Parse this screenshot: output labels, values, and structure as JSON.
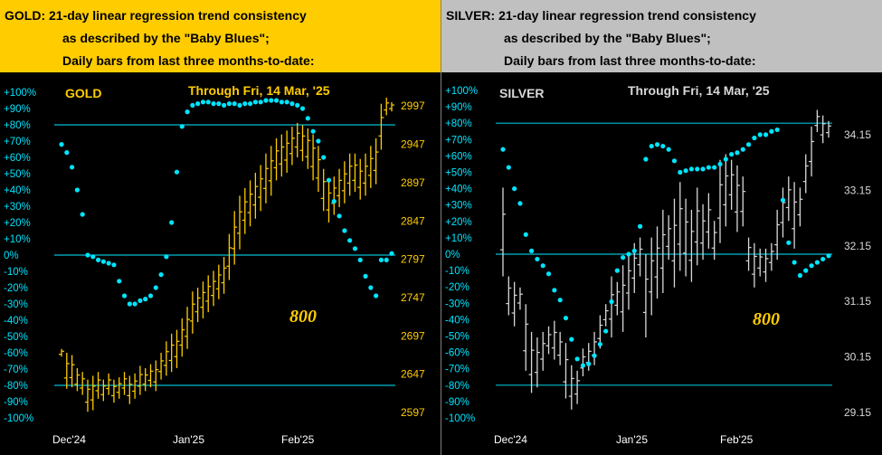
{
  "panels": [
    {
      "id": "gold",
      "header": {
        "line1": "GOLD:  21-day linear regression trend consistency",
        "line2": "as described by the \"Baby Blues\";",
        "line3": "Daily bars from last three months-to-date:"
      }
    },
    {
      "id": "silver",
      "header": {
        "line1": "SILVER:  21-day linear regression trend consistency",
        "line2": "as described by the \"Baby Blues\";",
        "line3": "Daily bars from last three months-to-date:"
      }
    }
  ],
  "chart_data": [
    {
      "type": "bar",
      "subtype": "daily-high-low-bars-with-dot-overlay",
      "label": "GOLD",
      "date_note": "Through Fri, 14 Mar, '25",
      "watermark": "800",
      "bar_color": "#ffcc00",
      "dot_color": "#00e5ff",
      "line_color": "#00bcd4",
      "left_axis": {
        "ticks": [
          "+100%",
          "+90%",
          "+80%",
          "+70%",
          "+60%",
          "+50%",
          "+40%",
          "+30%",
          "+20%",
          "+10%",
          "0%",
          "-10%",
          "-20%",
          "-30%",
          "-40%",
          "-50%",
          "-60%",
          "-70%",
          "-80%",
          "-90%",
          "-100%"
        ],
        "range": [
          -100,
          100
        ]
      },
      "right_axis": {
        "ticks": [
          "2997",
          "2947",
          "2897",
          "2847",
          "2797",
          "2747",
          "2697",
          "2647",
          "2597"
        ],
        "range": [
          2590,
          3015
        ]
      },
      "x_labels": [
        "Dec'24",
        "Jan'25",
        "Feb'25"
      ],
      "reference_lines_pct": [
        80,
        0,
        -80
      ],
      "bars": [
        [
          2670,
          2680
        ],
        [
          2628,
          2675
        ],
        [
          2630,
          2672
        ],
        [
          2625,
          2655
        ],
        [
          2620,
          2650
        ],
        [
          2598,
          2640
        ],
        [
          2600,
          2645
        ],
        [
          2615,
          2650
        ],
        [
          2612,
          2640
        ],
        [
          2620,
          2648
        ],
        [
          2610,
          2640
        ],
        [
          2615,
          2643
        ],
        [
          2620,
          2650
        ],
        [
          2608,
          2645
        ],
        [
          2615,
          2648
        ],
        [
          2620,
          2658
        ],
        [
          2625,
          2655
        ],
        [
          2630,
          2660
        ],
        [
          2625,
          2665
        ],
        [
          2640,
          2675
        ],
        [
          2645,
          2690
        ],
        [
          2650,
          2700
        ],
        [
          2655,
          2705
        ],
        [
          2670,
          2720
        ],
        [
          2680,
          2735
        ],
        [
          2700,
          2755
        ],
        [
          2715,
          2760
        ],
        [
          2720,
          2768
        ],
        [
          2728,
          2776
        ],
        [
          2736,
          2782
        ],
        [
          2745,
          2790
        ],
        [
          2752,
          2800
        ],
        [
          2770,
          2830
        ],
        [
          2790,
          2860
        ],
        [
          2810,
          2880
        ],
        [
          2830,
          2890
        ],
        [
          2840,
          2900
        ],
        [
          2850,
          2910
        ],
        [
          2860,
          2920
        ],
        [
          2870,
          2935
        ],
        [
          2880,
          2945
        ],
        [
          2900,
          2955
        ],
        [
          2905,
          2960
        ],
        [
          2910,
          2965
        ],
        [
          2920,
          2970
        ],
        [
          2930,
          2975
        ],
        [
          2925,
          2972
        ],
        [
          2915,
          2968
        ],
        [
          2900,
          2960
        ],
        [
          2885,
          2945
        ],
        [
          2860,
          2915
        ],
        [
          2845,
          2900
        ],
        [
          2855,
          2905
        ],
        [
          2865,
          2915
        ],
        [
          2870,
          2925
        ],
        [
          2880,
          2935
        ],
        [
          2885,
          2935
        ],
        [
          2875,
          2928
        ],
        [
          2880,
          2935
        ],
        [
          2890,
          2945
        ],
        [
          2895,
          2955
        ],
        [
          2940,
          3000
        ],
        [
          2985,
          3008
        ],
        [
          2990,
          3002
        ]
      ],
      "dots_pct": [
        68,
        63,
        54,
        40,
        25,
        0,
        -1,
        -3,
        -4,
        -5,
        -6,
        -16,
        -25,
        -30,
        -30,
        -28,
        -27,
        -25,
        -20,
        -12,
        -1,
        20,
        51,
        79,
        88,
        92,
        93,
        94,
        94,
        93,
        93,
        92,
        93,
        93,
        92,
        93,
        93,
        94,
        94,
        95,
        95,
        95,
        94,
        94,
        93,
        92,
        90,
        84,
        76,
        70,
        60,
        46,
        33,
        24,
        15,
        9,
        4,
        -3,
        -13,
        -20,
        -25,
        -3,
        -3,
        1
      ]
    },
    {
      "type": "bar",
      "subtype": "daily-high-low-bars-with-dot-overlay",
      "label": "SILVER",
      "date_note": "Through Fri, 14 Mar, '25",
      "watermark": "800",
      "bar_color": "#d8d8d8",
      "dot_color": "#00e5ff",
      "line_color": "#00bcd4",
      "left_axis": {
        "ticks": [
          "+100%",
          "+90%",
          "+80%",
          "+70%",
          "+60%",
          "+50%",
          "+40%",
          "+30%",
          "+20%",
          "+10%",
          "0%",
          "-10%",
          "-20%",
          "-30%",
          "-40%",
          "-50%",
          "-60%",
          "-70%",
          "-80%",
          "-90%",
          "-100%"
        ],
        "range": [
          -100,
          100
        ]
      },
      "right_axis": {
        "ticks": [
          "34.15",
          "33.15",
          "32.15",
          "31.15",
          "30.15",
          "29.15"
        ],
        "range": [
          29.05,
          34.95
        ]
      },
      "x_labels": [
        "Dec'24",
        "Jan'25",
        "Feb'25"
      ],
      "reference_lines_pct": [
        80,
        0,
        -80
      ],
      "bars": [
        [
          31.6,
          33.2
        ],
        [
          30.9,
          31.6
        ],
        [
          30.7,
          31.5
        ],
        [
          31.0,
          31.4
        ],
        [
          29.9,
          31.1
        ],
        [
          29.5,
          30.6
        ],
        [
          29.6,
          30.5
        ],
        [
          29.9,
          30.6
        ],
        [
          30.2,
          30.7
        ],
        [
          30.1,
          30.8
        ],
        [
          30.0,
          30.6
        ],
        [
          29.4,
          30.4
        ],
        [
          29.2,
          30.0
        ],
        [
          29.3,
          29.9
        ],
        [
          29.8,
          30.3
        ],
        [
          29.9,
          30.4
        ],
        [
          30.0,
          30.6
        ],
        [
          30.3,
          30.9
        ],
        [
          30.7,
          31.1
        ],
        [
          30.5,
          31.6
        ],
        [
          30.9,
          31.5
        ],
        [
          30.6,
          31.8
        ],
        [
          31.0,
          32.0
        ],
        [
          31.3,
          32.2
        ],
        [
          31.6,
          32.3
        ],
        [
          30.5,
          32.0
        ],
        [
          30.9,
          32.3
        ],
        [
          31.2,
          32.5
        ],
        [
          31.3,
          32.8
        ],
        [
          31.9,
          32.7
        ],
        [
          31.4,
          33.0
        ],
        [
          31.7,
          33.3
        ],
        [
          31.6,
          33.0
        ],
        [
          31.5,
          32.8
        ],
        [
          31.8,
          33.2
        ],
        [
          31.9,
          32.9
        ],
        [
          32.1,
          33.1
        ],
        [
          31.9,
          32.6
        ],
        [
          32.2,
          33.7
        ],
        [
          32.5,
          33.8
        ],
        [
          32.8,
          33.7
        ],
        [
          32.4,
          33.6
        ],
        [
          32.5,
          33.4
        ],
        [
          31.7,
          32.3
        ],
        [
          31.4,
          32.2
        ],
        [
          31.6,
          32.1
        ],
        [
          31.5,
          32.1
        ],
        [
          31.7,
          32.2
        ],
        [
          31.9,
          32.8
        ],
        [
          32.3,
          33.2
        ],
        [
          32.6,
          33.4
        ],
        [
          32.1,
          33.3
        ],
        [
          32.5,
          33.2
        ],
        [
          33.1,
          33.8
        ],
        [
          33.4,
          34.3
        ],
        [
          34.2,
          34.6
        ],
        [
          34.0,
          34.5
        ],
        [
          34.1,
          34.4
        ]
      ],
      "dots_pct": [
        64,
        53,
        40,
        31,
        12,
        2,
        -3,
        -7,
        -12,
        -22,
        -28,
        -39,
        -52,
        -64,
        -68,
        -67,
        -62,
        -55,
        -47,
        -29,
        -10,
        -2,
        0,
        2,
        17,
        58,
        66,
        67,
        66,
        64,
        57,
        50,
        51,
        52,
        52,
        52,
        53,
        53,
        55,
        58,
        61,
        62,
        64,
        67,
        71,
        73,
        73,
        75,
        76,
        33,
        7,
        -5,
        -13,
        -10,
        -7,
        -5,
        -3,
        -1
      ]
    }
  ]
}
